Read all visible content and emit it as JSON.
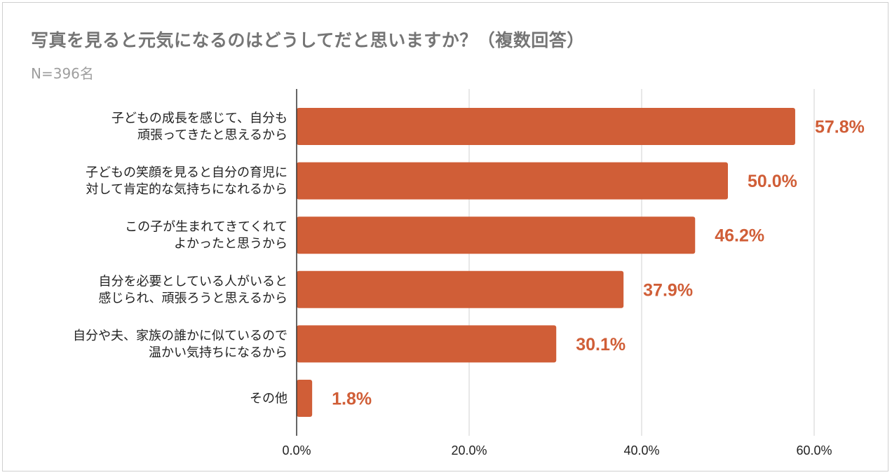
{
  "chart_data": {
    "type": "bar",
    "orientation": "horizontal",
    "title": "写真を見ると元気になるのはどうしてだと思いますか？（複数回答）",
    "subtitle": "N=396名",
    "xlabel": "",
    "ylabel": "",
    "xlim": [
      0,
      60
    ],
    "x_ticks": [
      0,
      20,
      40,
      60
    ],
    "x_tick_labels": [
      "0.0%",
      "20.0%",
      "40.0%",
      "60.0%"
    ],
    "grid": true,
    "legend": "none",
    "bar_color": "#d05e37",
    "label_color": "#d05e37",
    "categories": [
      [
        "子どもの成長を感じて、自分も",
        "頑張ってきたと思えるから"
      ],
      [
        "子どもの笑顔を見ると自分の育児に",
        "対して肯定的な気持ちになれるから"
      ],
      [
        "この子が生まれてきてくれて",
        "よかったと思うから"
      ],
      [
        "自分を必要としている人がいると",
        "感じられ、頑張ろうと思えるから"
      ],
      [
        "自分や夫、家族の誰かに似ているので",
        "温かい気持ちになるから"
      ],
      [
        "その他"
      ]
    ],
    "values": [
      57.8,
      50.0,
      46.2,
      37.9,
      30.1,
      1.8
    ],
    "value_labels": [
      "57.8%",
      "50.0%",
      "46.2%",
      "37.9%",
      "30.1%",
      "1.8%"
    ]
  }
}
